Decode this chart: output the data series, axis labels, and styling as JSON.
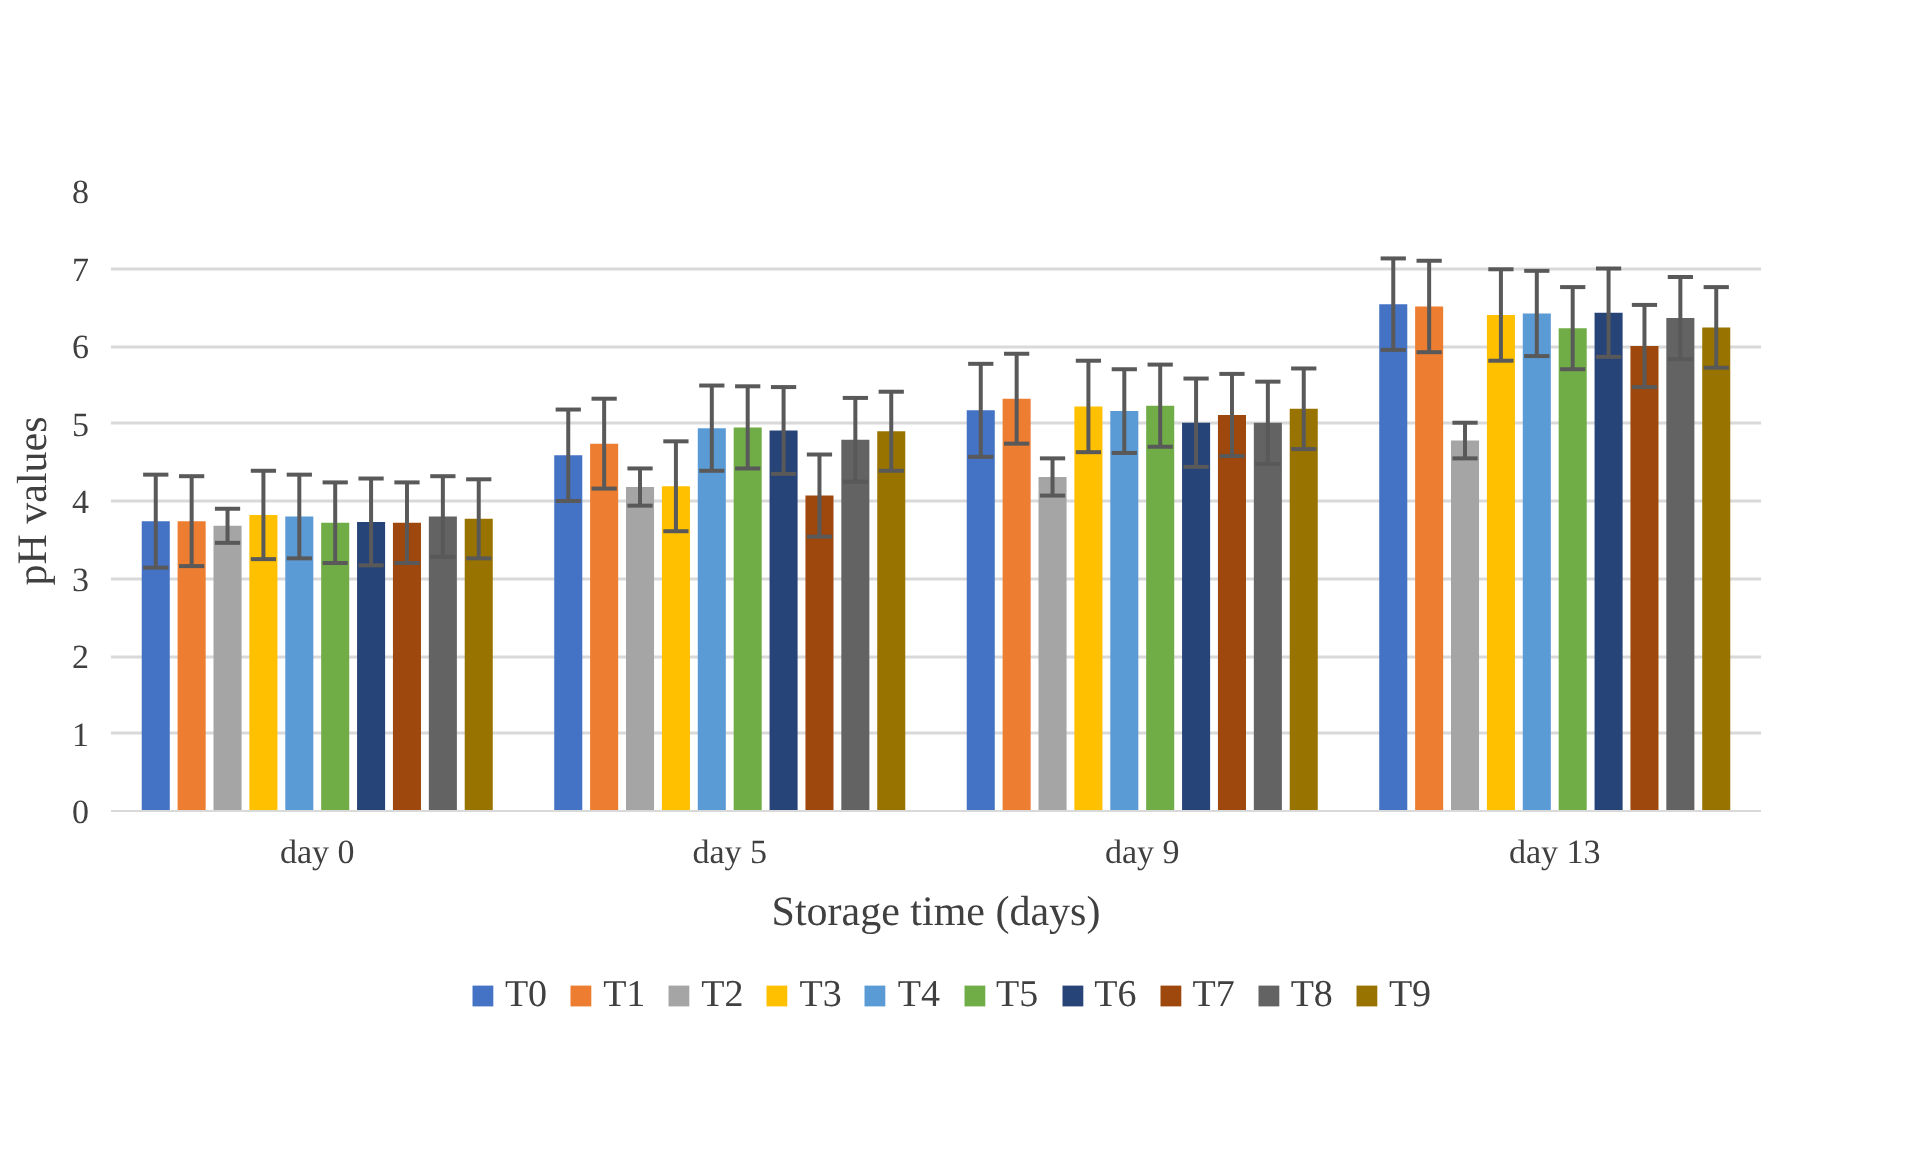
{
  "chart_data": {
    "type": "bar",
    "xlabel": "Storage time (days)",
    "ylabel": "pH values",
    "categories": [
      "day 0",
      "day 5",
      "day 9",
      "day 13"
    ],
    "ylim": [
      0,
      8
    ],
    "yticks": [
      0,
      1,
      2,
      3,
      4,
      5,
      6,
      7,
      8
    ],
    "grid": "y",
    "legend": "bottom",
    "series": [
      {
        "name": "T0",
        "color": "#4472c4",
        "values": [
          3.74,
          4.59,
          5.17,
          6.54
        ],
        "errors": [
          0.6,
          0.59,
          0.6,
          0.59
        ]
      },
      {
        "name": "T1",
        "color": "#ed7d31",
        "values": [
          3.74,
          4.74,
          5.32,
          6.51
        ],
        "errors": [
          0.58,
          0.58,
          0.58,
          0.59
        ]
      },
      {
        "name": "T2",
        "color": "#a5a5a5",
        "values": [
          3.68,
          4.18,
          4.31,
          4.78
        ],
        "errors": [
          0.22,
          0.24,
          0.24,
          0.23
        ]
      },
      {
        "name": "T3",
        "color": "#ffc000",
        "values": [
          3.82,
          4.19,
          5.22,
          6.4
        ],
        "errors": [
          0.57,
          0.58,
          0.59,
          0.59
        ]
      },
      {
        "name": "T4",
        "color": "#5b9bd5",
        "values": [
          3.8,
          4.94,
          5.16,
          6.42
        ],
        "errors": [
          0.54,
          0.55,
          0.54,
          0.55
        ]
      },
      {
        "name": "T5",
        "color": "#70ad47",
        "values": [
          3.72,
          4.95,
          5.23,
          6.23
        ],
        "errors": [
          0.52,
          0.53,
          0.53,
          0.53
        ]
      },
      {
        "name": "T6",
        "color": "#264478",
        "values": [
          3.73,
          4.91,
          5.01,
          6.43
        ],
        "errors": [
          0.56,
          0.56,
          0.57,
          0.57
        ]
      },
      {
        "name": "T7",
        "color": "#9e480e",
        "values": [
          3.72,
          4.07,
          5.11,
          6.0
        ],
        "errors": [
          0.52,
          0.53,
          0.53,
          0.53
        ]
      },
      {
        "name": "T8",
        "color": "#636363",
        "values": [
          3.8,
          4.79,
          5.01,
          6.36
        ],
        "errors": [
          0.52,
          0.54,
          0.53,
          0.53
        ]
      },
      {
        "name": "T9",
        "color": "#997300",
        "values": [
          3.77,
          4.9,
          5.19,
          6.24
        ],
        "errors": [
          0.51,
          0.51,
          0.52,
          0.52
        ]
      }
    ]
  }
}
